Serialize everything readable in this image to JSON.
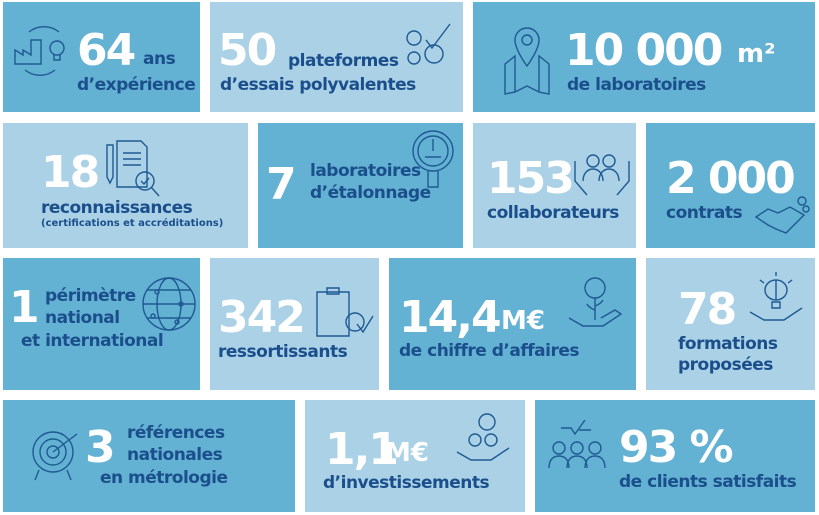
{
  "colors": {
    "dark_tile": "#63b1d3",
    "light_tile": "#aad1e6",
    "label_text": "#1b4f8c",
    "number_text": "#ffffff"
  },
  "tiles": [
    {
      "number": "64",
      "unit": "ans",
      "label": "d’expérience",
      "icon": "factory-lightbulb-cycle-icon"
    },
    {
      "number": "50",
      "label_line1": "plateformes",
      "label_line2": "d’essais polyvalentes",
      "icon": "gears-checkmark-icon"
    },
    {
      "number": "10 000",
      "unit": "m²",
      "label": "de laboratoires",
      "icon": "map-pin-icon"
    },
    {
      "number": "18",
      "label": "reconnaissances",
      "sublabel": "(certifications et accréditations)",
      "icon": "document-magnifier-icon"
    },
    {
      "number": "7",
      "label_line1": "laboratoires",
      "label_line2": "d’étalonnage",
      "icon": "gauge-icon"
    },
    {
      "number": "153",
      "label": "collaborateurs",
      "icon": "people-in-hands-icon"
    },
    {
      "number": "2 000",
      "label": "contrats",
      "icon": "handshake-icon"
    },
    {
      "number": "1",
      "label_line1": "périmètre",
      "label_line2": "national",
      "label_line3": "et international",
      "icon": "globe-network-icon"
    },
    {
      "number": "342",
      "label": "ressortissants",
      "icon": "clipboard-gear-icon"
    },
    {
      "number": "14,4",
      "unit": "M€",
      "label": "de chiffre d’affaires",
      "icon": "hand-euro-plant-icon"
    },
    {
      "number": "78",
      "label_line1": "formations",
      "label_line2": "proposées",
      "icon": "hand-brain-icon"
    },
    {
      "number": "3",
      "label_line1": "références",
      "label_line2": "nationales",
      "label_line3": "en métrologie",
      "icon": "target-arrow-icon"
    },
    {
      "number": "1,1",
      "unit": "M€",
      "label": "d’investissements",
      "icon": "hand-euro-coins-icon"
    },
    {
      "number": "93 %",
      "label": "de clients satisfaits",
      "icon": "satisfied-clients-icon"
    }
  ]
}
